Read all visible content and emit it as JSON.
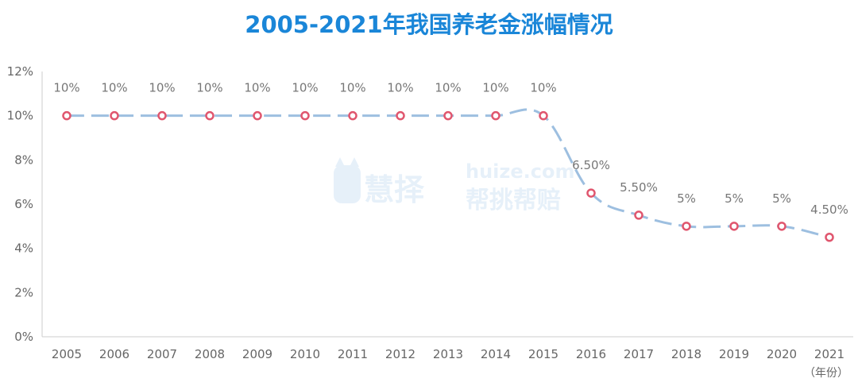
{
  "chart_data": {
    "type": "line",
    "title": "2005-2021年我国养老金涨幅情况",
    "x_unit_label": "（年份）",
    "categories": [
      "2005",
      "2006",
      "2007",
      "2008",
      "2009",
      "2010",
      "2011",
      "2012",
      "2013",
      "2014",
      "2015",
      "2016",
      "2017",
      "2018",
      "2019",
      "2020",
      "2021"
    ],
    "series": [
      {
        "values": [
          10,
          10,
          10,
          10,
          10,
          10,
          10,
          10,
          10,
          10,
          10,
          6.5,
          5.5,
          5,
          5,
          5,
          4.5
        ],
        "labels": [
          "10%",
          "10%",
          "10%",
          "10%",
          "10%",
          "10%",
          "10%",
          "10%",
          "10%",
          "10%",
          "10%",
          "6.50%",
          "5.50%",
          "5%",
          "5%",
          "5%",
          "4.50%"
        ]
      }
    ],
    "y_ticks": [
      "0%",
      "2%",
      "4%",
      "6%",
      "8%",
      "10%",
      "12%"
    ],
    "ylim": [
      0,
      12
    ],
    "grid": false,
    "line_style": "dashed",
    "colors": {
      "title": "#1a86d8",
      "line": "#9dbfe0",
      "marker": "#e0566e",
      "axis": "#cccccc"
    }
  },
  "watermark": {
    "brand": "慧择",
    "domain": "huize.com",
    "slogan": "帮挑帮赔"
  }
}
